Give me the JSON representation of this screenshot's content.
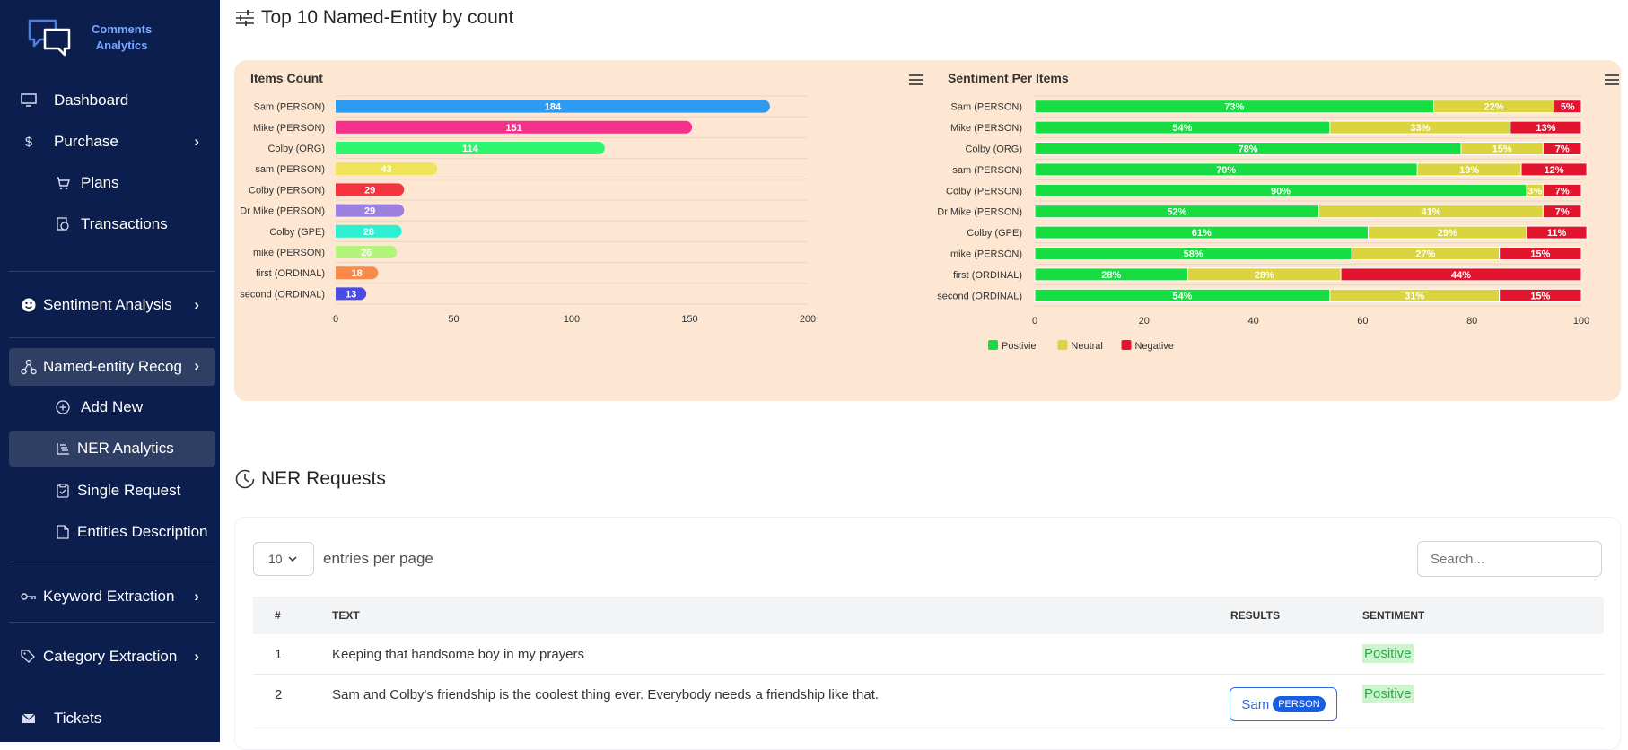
{
  "brand": {
    "line1": "Comments",
    "line2": "Analytics"
  },
  "sidebar": {
    "items": [
      {
        "label": "Dashboard",
        "icon": "monitor-icon"
      },
      {
        "label": "Purchase",
        "icon": "dollar-icon"
      },
      {
        "label": "Plans",
        "icon": "cart-icon"
      },
      {
        "label": "Transactions",
        "icon": "receipt-icon"
      },
      {
        "label": "Sentiment Analysis",
        "icon": "smile-icon"
      },
      {
        "label": "Named-entity Recog",
        "icon": "network-icon"
      },
      {
        "label": "Add New",
        "icon": "plus-circle-icon"
      },
      {
        "label": "NER Analytics",
        "icon": "list-tree-icon"
      },
      {
        "label": "Single Request",
        "icon": "clipboard-icon"
      },
      {
        "label": "Entities Description",
        "icon": "document-icon"
      },
      {
        "label": "Keyword Extraction",
        "icon": "key-icon"
      },
      {
        "label": "Category Extraction",
        "icon": "tags-icon"
      },
      {
        "label": "Tickets",
        "icon": "envelope-icon"
      }
    ]
  },
  "main": {
    "section1_title": "Top 10 Named-Entity by count",
    "section2_title": "NER Requests"
  },
  "chart_data": [
    {
      "type": "bar",
      "orientation": "horizontal",
      "title": "Items Count",
      "categories": [
        "Sam (PERSON)",
        "Mike (PERSON)",
        "Colby (ORG)",
        "sam (PERSON)",
        "Colby (PERSON)",
        "Dr Mike (PERSON)",
        "Colby (GPE)",
        "mike (PERSON)",
        "first (ORDINAL)",
        "second (ORDINAL)"
      ],
      "values": [
        184,
        151,
        114,
        43,
        29,
        29,
        28,
        26,
        18,
        13
      ],
      "colors": [
        "#2e9bf0",
        "#f5318c",
        "#2ef56e",
        "#eee35a",
        "#f5333f",
        "#9d7fe0",
        "#2ef0d0",
        "#b3f57a",
        "#f98b4a",
        "#4a4ae8"
      ],
      "xlim": [
        0,
        200
      ],
      "xticks": [
        0,
        50,
        100,
        150,
        200
      ],
      "grid": true
    },
    {
      "type": "bar",
      "orientation": "horizontal",
      "stacked": true,
      "title": "Sentiment Per Items",
      "categories": [
        "Sam (PERSON)",
        "Mike (PERSON)",
        "Colby (ORG)",
        "sam (PERSON)",
        "Colby (PERSON)",
        "Dr Mike (PERSON)",
        "Colby (GPE)",
        "mike (PERSON)",
        "first (ORDINAL)",
        "second (ORDINAL)"
      ],
      "series": [
        {
          "name": "Postivie",
          "color": "#17dd42",
          "values": [
            73,
            54,
            78,
            70,
            90,
            52,
            61,
            58,
            28,
            54
          ]
        },
        {
          "name": "Neutral",
          "color": "#dcd43e",
          "values": [
            22,
            33,
            15,
            19,
            3,
            41,
            29,
            27,
            28,
            31
          ]
        },
        {
          "name": "Negative",
          "color": "#e3152e",
          "values": [
            5,
            13,
            7,
            12,
            7,
            7,
            11,
            15,
            44,
            15
          ]
        }
      ],
      "xlim": [
        0,
        100
      ],
      "xticks": [
        0,
        20,
        40,
        60,
        80,
        100
      ],
      "legend": "bottom-left",
      "grid": true
    }
  ],
  "table": {
    "entries_value": "10",
    "entries_label": "entries per page",
    "search_placeholder": "Search...",
    "headers": {
      "num": "#",
      "text": "TEXT",
      "results": "RESULTS",
      "sentiment": "SENTIMENT"
    },
    "rows": [
      {
        "num": "1",
        "text": "Keeping that handsome boy in my prayers",
        "result": "",
        "result_tag": "",
        "sentiment": "Positive"
      },
      {
        "num": "2",
        "text": "Sam and Colby's friendship is the coolest thing ever. Everybody needs a friendship like that.",
        "result": "Sam",
        "result_tag": "PERSON",
        "sentiment": "Positive"
      }
    ]
  },
  "colors": {
    "sidebar": "#0b1e4d",
    "active": "#2f3e63",
    "chart_bg": "#fde7d2",
    "accent": "#2d6cdf"
  }
}
